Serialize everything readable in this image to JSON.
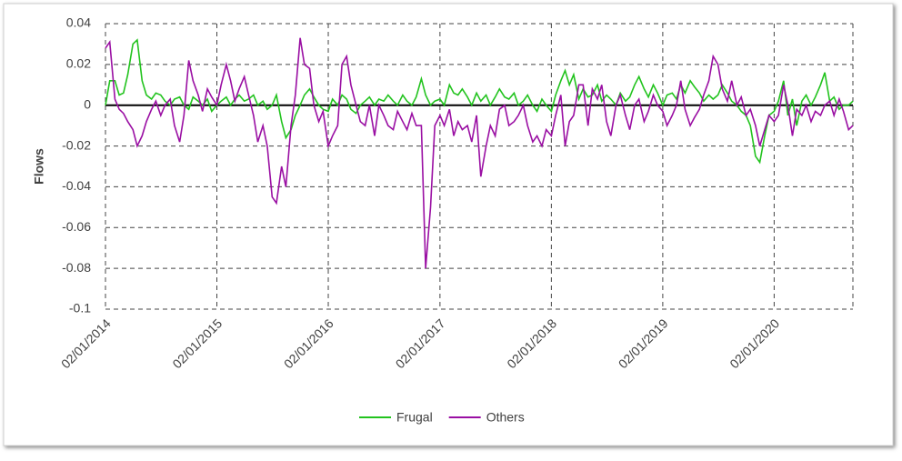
{
  "chart_data": {
    "type": "line",
    "y_label": "Flows",
    "x": [
      "02/01/2014",
      "16/01/2014",
      "02/02/2014",
      "16/02/2014",
      "02/03/2014",
      "16/03/2014",
      "02/04/2014",
      "16/04/2014",
      "02/05/2014",
      "16/05/2014",
      "02/06/2014",
      "16/06/2014",
      "02/07/2014",
      "16/07/2014",
      "02/08/2014",
      "16/08/2014",
      "02/09/2014",
      "16/09/2014",
      "02/10/2014",
      "16/10/2014",
      "02/11/2014",
      "16/11/2014",
      "02/12/2014",
      "16/12/2014",
      "02/01/2015",
      "16/01/2015",
      "02/02/2015",
      "16/02/2015",
      "02/03/2015",
      "16/03/2015",
      "02/04/2015",
      "16/04/2015",
      "02/05/2015",
      "16/05/2015",
      "02/06/2015",
      "16/06/2015",
      "02/07/2015",
      "16/07/2015",
      "02/08/2015",
      "16/08/2015",
      "02/09/2015",
      "16/09/2015",
      "02/10/2015",
      "16/10/2015",
      "02/11/2015",
      "16/11/2015",
      "02/12/2015",
      "16/12/2015",
      "02/01/2016",
      "16/01/2016",
      "02/02/2016",
      "16/02/2016",
      "02/03/2016",
      "16/03/2016",
      "02/04/2016",
      "16/04/2016",
      "02/05/2016",
      "16/05/2016",
      "02/06/2016",
      "16/06/2016",
      "02/07/2016",
      "16/07/2016",
      "02/08/2016",
      "16/08/2016",
      "02/09/2016",
      "16/09/2016",
      "02/10/2016",
      "16/10/2016",
      "02/11/2016",
      "16/11/2016",
      "02/12/2016",
      "16/12/2016",
      "02/01/2017",
      "16/01/2017",
      "02/02/2017",
      "16/02/2017",
      "02/03/2017",
      "16/03/2017",
      "02/04/2017",
      "16/04/2017",
      "02/05/2017",
      "16/05/2017",
      "02/06/2017",
      "16/06/2017",
      "02/07/2017",
      "16/07/2017",
      "02/08/2017",
      "16/08/2017",
      "02/09/2017",
      "16/09/2017",
      "02/10/2017",
      "16/10/2017",
      "02/11/2017",
      "16/11/2017",
      "02/12/2017",
      "16/12/2017",
      "02/01/2018",
      "16/01/2018",
      "02/02/2018",
      "16/02/2018",
      "02/03/2018",
      "16/03/2018",
      "02/04/2018",
      "16/04/2018",
      "02/05/2018",
      "16/05/2018",
      "02/06/2018",
      "16/06/2018",
      "02/07/2018",
      "16/07/2018",
      "02/08/2018",
      "16/08/2018",
      "02/09/2018",
      "16/09/2018",
      "02/10/2018",
      "16/10/2018",
      "02/11/2018",
      "16/11/2018",
      "02/12/2018",
      "16/12/2018",
      "02/01/2019",
      "16/01/2019",
      "02/02/2019",
      "16/02/2019",
      "02/03/2019",
      "16/03/2019",
      "02/04/2019",
      "16/04/2019",
      "02/05/2019",
      "16/05/2019",
      "02/06/2019",
      "16/06/2019",
      "02/07/2019",
      "16/07/2019",
      "02/08/2019",
      "16/08/2019",
      "02/09/2019",
      "16/09/2019",
      "02/10/2019",
      "16/10/2019",
      "02/11/2019",
      "16/11/2019",
      "02/12/2019",
      "16/12/2019",
      "02/01/2020",
      "16/01/2020",
      "02/02/2020",
      "16/02/2020",
      "02/03/2020",
      "16/03/2020",
      "02/04/2020",
      "16/04/2020",
      "02/05/2020",
      "16/05/2020",
      "02/06/2020",
      "16/06/2020",
      "02/07/2020",
      "16/07/2020",
      "02/08/2020",
      "16/08/2020",
      "02/09/2020",
      "16/09/2020"
    ],
    "series": [
      {
        "name": "Frugal",
        "color": "#22c31e",
        "values": [
          0.0,
          0.012,
          0.012,
          0.005,
          0.006,
          0.015,
          0.03,
          0.032,
          0.012,
          0.005,
          0.003,
          0.006,
          0.005,
          0.002,
          0.0,
          0.003,
          0.004,
          0.0,
          -0.002,
          0.004,
          0.002,
          0.0,
          0.003,
          -0.003,
          0.0,
          0.002,
          0.004,
          0.0,
          0.003,
          0.005,
          0.002,
          0.003,
          0.005,
          0.0,
          0.002,
          -0.002,
          0.0,
          0.005,
          -0.008,
          -0.016,
          -0.012,
          -0.005,
          0.0,
          0.005,
          0.008,
          0.004,
          0.0,
          -0.002,
          -0.003,
          0.003,
          0.0,
          0.005,
          0.003,
          -0.002,
          -0.004,
          0.0,
          0.002,
          0.004,
          0.0,
          0.003,
          0.002,
          0.005,
          0.002,
          0.0,
          0.005,
          0.002,
          0.0,
          0.004,
          0.013,
          0.005,
          0.0,
          0.002,
          0.003,
          0.0,
          0.01,
          0.006,
          0.005,
          0.008,
          0.004,
          0.0,
          0.006,
          0.002,
          0.005,
          0.0,
          0.004,
          0.008,
          0.004,
          0.003,
          0.006,
          0.0,
          0.002,
          0.005,
          0.0,
          -0.003,
          0.003,
          0.0,
          -0.003,
          0.005,
          0.012,
          0.017,
          0.01,
          0.015,
          0.003,
          0.008,
          0.004,
          0.005,
          0.01,
          0.002,
          0.005,
          0.003,
          0.0,
          0.006,
          0.002,
          0.004,
          0.01,
          0.014,
          0.008,
          0.004,
          0.01,
          0.006,
          0.0,
          0.005,
          0.006,
          0.003,
          0.01,
          0.006,
          0.012,
          0.009,
          0.006,
          0.002,
          0.005,
          0.003,
          0.005,
          0.01,
          0.006,
          0.002,
          0.0,
          -0.003,
          -0.005,
          -0.01,
          -0.025,
          -0.028,
          -0.015,
          -0.005,
          -0.003,
          0.002,
          0.012,
          -0.005,
          0.003,
          -0.01,
          0.002,
          0.005,
          0.0,
          0.004,
          0.01,
          0.016,
          0.002,
          0.004,
          -0.002,
          0.0,
          0.0,
          0.002
        ]
      },
      {
        "name": "Others",
        "color": "#9a0fa3",
        "values": [
          0.028,
          0.031,
          0.003,
          -0.002,
          -0.004,
          -0.008,
          -0.012,
          -0.02,
          -0.015,
          -0.008,
          -0.002,
          0.002,
          -0.005,
          0.0,
          0.003,
          -0.01,
          -0.018,
          -0.005,
          0.022,
          0.012,
          0.005,
          -0.003,
          0.008,
          0.004,
          0.0,
          0.01,
          0.02,
          0.012,
          0.002,
          0.008,
          0.014,
          0.005,
          -0.005,
          -0.018,
          -0.01,
          -0.02,
          -0.045,
          -0.048,
          -0.03,
          -0.04,
          -0.01,
          0.005,
          0.033,
          0.02,
          0.018,
          0.0,
          -0.008,
          -0.003,
          -0.02,
          -0.015,
          -0.01,
          0.02,
          0.024,
          0.01,
          0.0,
          -0.008,
          -0.01,
          0.0,
          -0.015,
          0.0,
          -0.005,
          -0.01,
          -0.012,
          -0.003,
          -0.008,
          -0.012,
          -0.004,
          -0.01,
          -0.01,
          -0.08,
          -0.05,
          -0.01,
          -0.005,
          -0.01,
          -0.002,
          -0.015,
          -0.008,
          -0.012,
          -0.01,
          -0.018,
          -0.005,
          -0.035,
          -0.02,
          -0.01,
          -0.015,
          -0.002,
          0.0,
          -0.01,
          -0.008,
          -0.005,
          0.0,
          -0.01,
          -0.018,
          -0.015,
          -0.02,
          -0.012,
          -0.015,
          -0.005,
          0.005,
          -0.02,
          -0.008,
          -0.005,
          0.01,
          0.01,
          -0.01,
          0.008,
          0.003,
          0.01,
          -0.008,
          -0.015,
          0.0,
          0.005,
          -0.005,
          -0.012,
          0.0,
          0.003,
          -0.008,
          -0.003,
          0.005,
          0.0,
          -0.003,
          -0.01,
          -0.005,
          0.0,
          0.012,
          -0.002,
          -0.01,
          -0.006,
          -0.002,
          0.005,
          0.012,
          0.024,
          0.02,
          0.008,
          0.002,
          0.012,
          0.0,
          0.004,
          -0.005,
          -0.002,
          -0.01,
          -0.02,
          -0.012,
          -0.005,
          -0.008,
          -0.005,
          0.01,
          0.0,
          -0.015,
          -0.002,
          -0.005,
          0.0,
          -0.008,
          -0.003,
          -0.005,
          0.0,
          0.002,
          -0.005,
          0.003,
          -0.003,
          -0.012,
          -0.01
        ]
      }
    ],
    "xlim": [
      "02/01/2014",
      "16/09/2020"
    ],
    "xticks": [
      "02/01/2014",
      "02/01/2015",
      "02/01/2016",
      "02/01/2017",
      "02/01/2018",
      "02/01/2019",
      "02/01/2020"
    ],
    "ylim": [
      -0.1,
      0.04
    ],
    "yticks": [
      0.04,
      0.02,
      0,
      -0.02,
      -0.04,
      -0.06,
      -0.08,
      -0.1
    ],
    "grid": true,
    "legend": "bottom"
  }
}
